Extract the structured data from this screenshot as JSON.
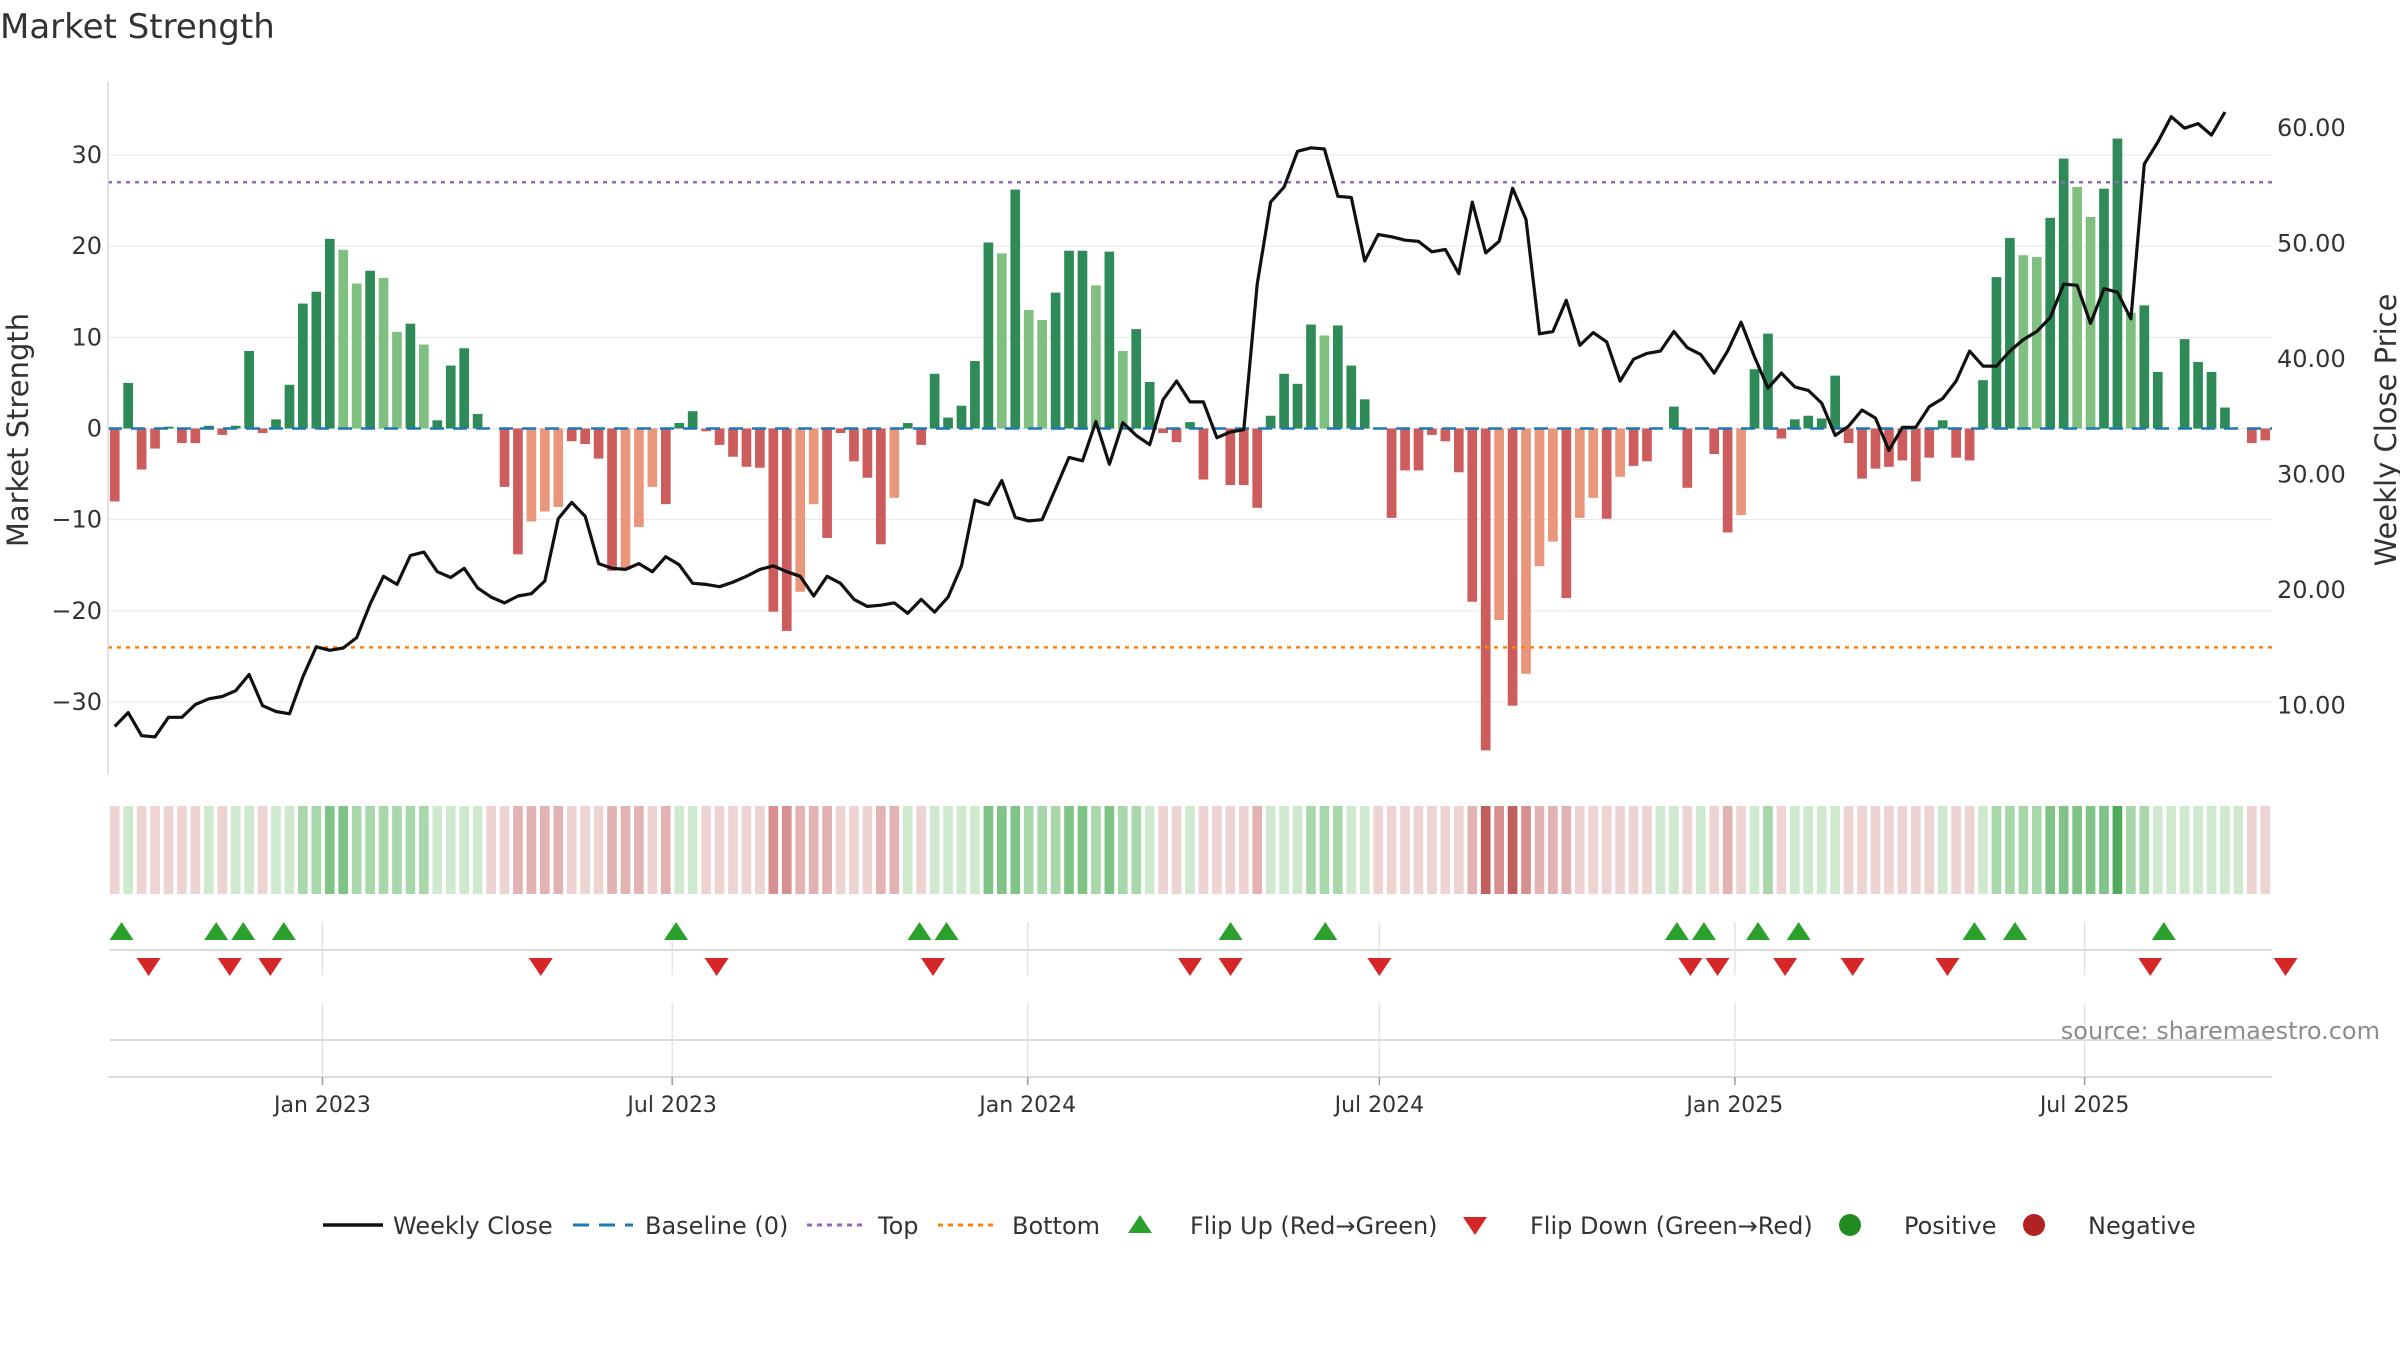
{
  "title": "Market Strength",
  "source": "source: sharemaestro.com",
  "colors": {
    "pos_strong": "#2e8b57",
    "pos_light": "#7fbf7f",
    "neg_strong": "#cd5c5c",
    "neg_light": "#e9967a",
    "close": "#111111",
    "baseline": "#1f77b4",
    "top": "#9467bd",
    "bottom": "#ff7f0e",
    "flip_up": "#2ca02c",
    "flip_down": "#d62728",
    "positive": "#228b22",
    "negative": "#b22222",
    "grid": "#e6e6e6"
  },
  "legend": [
    {
      "key": "close",
      "label": "Weekly Close",
      "icon": "solid-line"
    },
    {
      "key": "baseline",
      "label": "Baseline (0)",
      "icon": "dashed-line"
    },
    {
      "key": "top",
      "label": "Top",
      "icon": "dotted-line"
    },
    {
      "key": "bottom",
      "label": "Bottom",
      "icon": "dotted-line"
    },
    {
      "key": "flip_up",
      "label": "Flip Up (Red→Green)",
      "icon": "triangle-up"
    },
    {
      "key": "flip_down",
      "label": "Flip Down (Green→Red)",
      "icon": "triangle-down"
    },
    {
      "key": "positive",
      "label": "Positive",
      "icon": "circle"
    },
    {
      "key": "negative",
      "label": "Negative",
      "icon": "circle"
    }
  ],
  "chart_data": {
    "type": "bar",
    "ylabel": "Market Strength",
    "y2label": "Weekly Close Price",
    "ylim": [
      -38,
      38
    ],
    "y2lim": [
      4,
      64
    ],
    "yticks": [
      30,
      20,
      10,
      0,
      -10,
      -20,
      -30
    ],
    "ytick_labels": [
      "30",
      "20",
      "10",
      "0",
      "−10",
      "−20",
      "−30"
    ],
    "y2ticks": [
      60,
      50,
      40,
      30,
      20,
      10
    ],
    "y2tick_labels": [
      "60.00",
      "50.00",
      "40.00",
      "30.00",
      "20.00",
      "10.00"
    ],
    "x_start": "2022-09-12",
    "x_end": "2025-10-06",
    "x_ticks": [
      {
        "date": "2023-01-01",
        "label": "Jan 2023"
      },
      {
        "date": "2023-07-01",
        "label": "Jul 2023"
      },
      {
        "date": "2024-01-01",
        "label": "Jan 2024"
      },
      {
        "date": "2024-07-01",
        "label": "Jul 2024"
      },
      {
        "date": "2025-01-01",
        "label": "Jan 2025"
      },
      {
        "date": "2025-07-01",
        "label": "Jul 2025"
      }
    ],
    "top_level": 27,
    "bottom_level": -24,
    "grid": true,
    "legend_position": "bottom",
    "series": [
      {
        "name": "Market Strength",
        "values": [
          -8,
          5,
          -4.5,
          -2.2,
          0.2,
          -1.6,
          -1.6,
          0.3,
          -0.7,
          0.3,
          8.5,
          -0.5,
          1,
          4.8,
          13.7,
          15,
          20.8,
          19.6,
          15.9,
          17.3,
          16.5,
          10.6,
          11.5,
          9.2,
          0.9,
          6.9,
          8.8,
          1.6,
          0,
          -6.4,
          -13.8,
          -10.2,
          -9.1,
          -8.6,
          -1.4,
          -1.7,
          -3.3,
          -15.6,
          -15.5,
          -10.8,
          -6.4,
          -8.3,
          0.6,
          1.9,
          -0.3,
          -1.8,
          -3.1,
          -4.2,
          -4.3,
          -20.1,
          -22.2,
          -17.9,
          -8.3,
          -12,
          -0.5,
          -3.6,
          -5.4,
          -12.7,
          -7.6,
          0.6,
          -1.8,
          6,
          1.2,
          2.5,
          7.4,
          20.4,
          19.2,
          26.2,
          13,
          11.9,
          14.9,
          19.5,
          19.5,
          15.7,
          19.4,
          8.5,
          10.9,
          5.1,
          -0.5,
          -1.5,
          0.7,
          -5.6,
          0,
          -6.2,
          -6.2,
          -8.7,
          1.4,
          6,
          4.9,
          11.4,
          10.2,
          11.3,
          6.9,
          3.2,
          0,
          -9.8,
          -4.6,
          -4.6,
          -0.7,
          -1.4,
          -4.8,
          -19,
          -35.3,
          -21,
          -30.4,
          -26.9,
          -15.1,
          -12.4,
          -18.6,
          -9.8,
          -7.6,
          -9.9,
          -5.3,
          -4.1,
          -3.6,
          0,
          2.4,
          -6.5,
          0,
          -2.8,
          -11.4,
          -9.5,
          6.5,
          10.4,
          -1.1,
          1,
          1.4,
          1.1,
          5.8,
          -1.6,
          -5.5,
          -4.4,
          -4.2,
          -3.5,
          -5.8,
          -3.2,
          0.9,
          -3.2,
          -3.5,
          5.3,
          16.6,
          20.9,
          19,
          18.8,
          23.1,
          29.6,
          26.5,
          23.2,
          26.3,
          31.8,
          12.7,
          13.5,
          6.2,
          0,
          9.8,
          7.3,
          6.2,
          2.3,
          0,
          -1.6,
          -1.3
        ]
      },
      {
        "name": "Weekly Close",
        "values": [
          8.2,
          9.4,
          7.4,
          7.3,
          9,
          9,
          10.1,
          10.6,
          10.8,
          11.3,
          12.7,
          10,
          9.5,
          9.3,
          12.5,
          15.1,
          14.8,
          15,
          15.9,
          18.8,
          21.2,
          20.5,
          23,
          23.3,
          21.6,
          21.1,
          21.9,
          20.2,
          19.4,
          18.9,
          19.5,
          19.7,
          20.8,
          26.2,
          27.6,
          26.4,
          22.3,
          21.9,
          21.8,
          22.3,
          21.6,
          22.9,
          22.2,
          20.6,
          20.5,
          20.3,
          20.7,
          21.2,
          21.8,
          22.1,
          21.6,
          21.2,
          19.5,
          21.2,
          20.6,
          19.2,
          18.6,
          18.7,
          18.9,
          18,
          19.2,
          18.1,
          19.4,
          22.1,
          27.8,
          27.4,
          29.5,
          26.3,
          26,
          26.1,
          28.8,
          31.5,
          31.2,
          34.6,
          30.9,
          34.5,
          33.4,
          32.6,
          36.5,
          38.1,
          36.3,
          36.3,
          33.2,
          33.7,
          33.9,
          46.5,
          53.6,
          54.9,
          58,
          58.3,
          58.2,
          54.1,
          54,
          48.5,
          50.8,
          50.6,
          50.3,
          50.2,
          49.3,
          49.5,
          47.4,
          53.6,
          49.2,
          50.2,
          54.8,
          52.1,
          42.2,
          42.4,
          45.1,
          41.2,
          42.3,
          41.5,
          38.1,
          40,
          40.5,
          40.7,
          42.4,
          41,
          40.4,
          38.8,
          40.7,
          43.2,
          40.2,
          37.5,
          38.8,
          37.6,
          37.3,
          36.2,
          33.4,
          34.2,
          35.6,
          34.9,
          32.1,
          34.1,
          34.1,
          35.9,
          36.6,
          38.1,
          40.7,
          39.4,
          39.4,
          40.7,
          41.7,
          42.4,
          43.6,
          46.5,
          46.4,
          43.1,
          46.1,
          45.8,
          43.5,
          56.9,
          58.8,
          61,
          60,
          60.4,
          59.4,
          61.4
        ]
      }
    ],
    "strength_strip": [
      -1,
      1,
      -1,
      -1,
      -1,
      -1,
      -1,
      1,
      -1,
      1,
      1,
      -1,
      1,
      1,
      2,
      2,
      3,
      3,
      2,
      2,
      2,
      2,
      2,
      2,
      1,
      1,
      1,
      1,
      -1,
      -1,
      -2,
      -2,
      -2,
      -2,
      -1,
      -1,
      -1,
      -2,
      -2,
      -2,
      -1,
      -2,
      1,
      1,
      -1,
      -1,
      -1,
      -1,
      -1,
      -3,
      -3,
      -2,
      -2,
      -2,
      -1,
      -1,
      -1,
      -2,
      -2,
      1,
      -1,
      1,
      1,
      1,
      1,
      3,
      3,
      3,
      2,
      2,
      2,
      3,
      3,
      2,
      3,
      2,
      2,
      1,
      -1,
      -1,
      1,
      -1,
      -1,
      -1,
      -1,
      -2,
      1,
      1,
      1,
      2,
      2,
      2,
      1,
      1,
      -1,
      -1,
      -1,
      -1,
      -1,
      -1,
      -1,
      -2,
      -4,
      -3,
      -4,
      -3,
      -2,
      -2,
      -2,
      -1,
      -1,
      -1,
      -1,
      -1,
      -1,
      1,
      1,
      -1,
      1,
      -1,
      -2,
      -1,
      1,
      2,
      -1,
      1,
      1,
      1,
      1,
      -1,
      -1,
      -1,
      -1,
      -1,
      -1,
      -1,
      1,
      -1,
      -1,
      1,
      2,
      2,
      2,
      2,
      3,
      3,
      3,
      3,
      3,
      4,
      2,
      2,
      1,
      1,
      1,
      1,
      1,
      1,
      1,
      -1,
      -1
    ],
    "flip_up": [
      "2022-09-19",
      "2022-11-07",
      "2022-11-21",
      "2022-12-12",
      "2023-07-03",
      "2023-11-06",
      "2023-11-20",
      "2024-04-15",
      "2024-06-03",
      "2024-12-02",
      "2024-12-16",
      "2025-01-13",
      "2025-02-03",
      "2025-05-05",
      "2025-05-26",
      "2025-08-11"
    ],
    "flip_down": [
      "2022-10-03",
      "2022-11-14",
      "2022-12-05",
      "2023-04-24",
      "2023-07-24",
      "2023-11-13",
      "2024-03-25",
      "2024-04-15",
      "2024-07-01",
      "2024-12-09",
      "2024-12-23",
      "2025-01-27",
      "2025-03-03",
      "2025-04-21",
      "2025-08-04",
      "2025-10-13"
    ]
  }
}
